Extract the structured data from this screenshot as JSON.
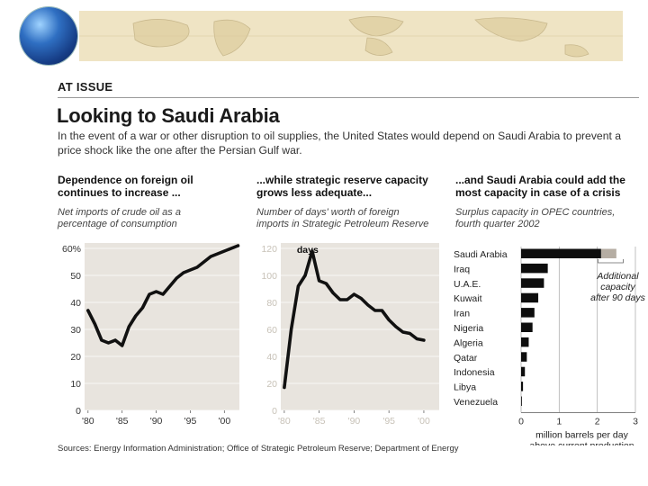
{
  "header": {
    "label": "AT ISSUE",
    "title": "Looking to Saudi Arabia",
    "dek": "In the event of a war or other disruption to oil supplies, the United States would depend on Saudi Arabia to prevent a price shock like the one after the Persian Gulf war."
  },
  "panels": [
    {
      "title_line1": "Dependence on foreign oil",
      "title_line2": "continues to increase ...",
      "subtitle_line1": "Net imports of crude oil as a",
      "subtitle_line2": "percentage of consumption"
    },
    {
      "title_line1": "...while strategic reserve capacity",
      "title_line2": "grows less adequate...",
      "subtitle_line1": "Number of days' worth of foreign",
      "subtitle_line2": "imports in Strategic Petroleum Reserve"
    },
    {
      "title_line1": "...and Saudi Arabia could add the",
      "title_line2": "most capacity in case of a crisis",
      "subtitle_line1": "Surplus capacity in OPEC countries,",
      "subtitle_line2": "fourth quarter 2002"
    }
  ],
  "source": "Sources: Energy Information Administration; Office of Strategic Petroleum Reserve; Department of Energy",
  "colors": {
    "area": "#e8e4de",
    "line": "#111111",
    "extra": "#b5ada3",
    "rule": "#9a9a9a"
  },
  "chart_data": [
    {
      "type": "line",
      "title": "Dependence on foreign oil continues to increase ...",
      "ylabel": "Net imports of crude oil as a percentage of consumption",
      "x": [
        1980,
        1981,
        1982,
        1983,
        1984,
        1985,
        1986,
        1987,
        1988,
        1989,
        1990,
        1991,
        1992,
        1993,
        1994,
        1995,
        1996,
        1997,
        1998,
        1999,
        2000,
        2001,
        2002
      ],
      "values": [
        37,
        32,
        26,
        25,
        26,
        24,
        31,
        35,
        38,
        43,
        44,
        43,
        46,
        49,
        51,
        52,
        53,
        55,
        57,
        58,
        59,
        60,
        61
      ],
      "xticks": [
        1980,
        1985,
        1990,
        1995,
        2000
      ],
      "xtick_labels": [
        "'80",
        "'85",
        "'90",
        "'95",
        "'00"
      ],
      "yticks": [
        0,
        10,
        20,
        30,
        40,
        50,
        60
      ],
      "ytick_labels": [
        "0",
        "10",
        "20",
        "30",
        "40",
        "50",
        "60%"
      ],
      "xlim": [
        1979.5,
        2002.2
      ],
      "ylim": [
        0,
        62
      ]
    },
    {
      "type": "line",
      "title": "...while strategic reserve capacity grows less adequate...",
      "ylabel": "Number of days' worth of foreign imports in Strategic Petroleum Reserve",
      "unit_label": "days",
      "x": [
        1980,
        1981,
        1982,
        1983,
        1984,
        1985,
        1986,
        1987,
        1988,
        1989,
        1990,
        1991,
        1992,
        1993,
        1994,
        1995,
        1996,
        1997,
        1998,
        1999,
        2000,
        2001,
        2002
      ],
      "values": [
        17,
        60,
        92,
        100,
        118,
        96,
        94,
        87,
        82,
        82,
        86,
        83,
        78,
        74,
        74,
        67,
        62,
        58,
        57,
        53,
        52,
        null,
        null
      ],
      "xticks": [
        1980,
        1985,
        1990,
        1995,
        2000
      ],
      "xtick_labels": [
        "'80",
        "'85",
        "'90",
        "'95",
        "'00"
      ],
      "yticks": [
        0,
        20,
        40,
        60,
        80,
        100,
        120
      ],
      "ytick_labels": [
        "0",
        "20",
        "40",
        "60",
        "80",
        "100",
        "120"
      ],
      "xlim": [
        1979.5,
        2002.2
      ],
      "ylim": [
        0,
        124
      ]
    },
    {
      "type": "bar",
      "orientation": "horizontal",
      "title": "...and Saudi Arabia could add the most capacity in case of a crisis",
      "subtitle": "Surplus capacity in OPEC countries, fourth quarter 2002",
      "xlabel_line1": "million barrels per day",
      "xlabel_line2": "above current production",
      "categories": [
        "Saudi Arabia",
        "Iraq",
        "U.A.E.",
        "Kuwait",
        "Iran",
        "Nigeria",
        "Algeria",
        "Qatar",
        "Indonesia",
        "Libya",
        "Venezuela"
      ],
      "values": [
        2.1,
        0.7,
        0.6,
        0.45,
        0.35,
        0.3,
        0.2,
        0.15,
        0.1,
        0.05,
        0.02
      ],
      "additional": [
        0.4,
        0,
        0,
        0,
        0,
        0,
        0,
        0,
        0,
        0,
        0
      ],
      "annotation_line1": "Additional",
      "annotation_line2": "capacity",
      "annotation_line3": "after 90 days",
      "xticks": [
        0,
        1,
        2,
        3
      ],
      "xtick_labels": [
        "0",
        "1",
        "2",
        "3"
      ],
      "xlim": [
        0,
        3
      ]
    }
  ]
}
